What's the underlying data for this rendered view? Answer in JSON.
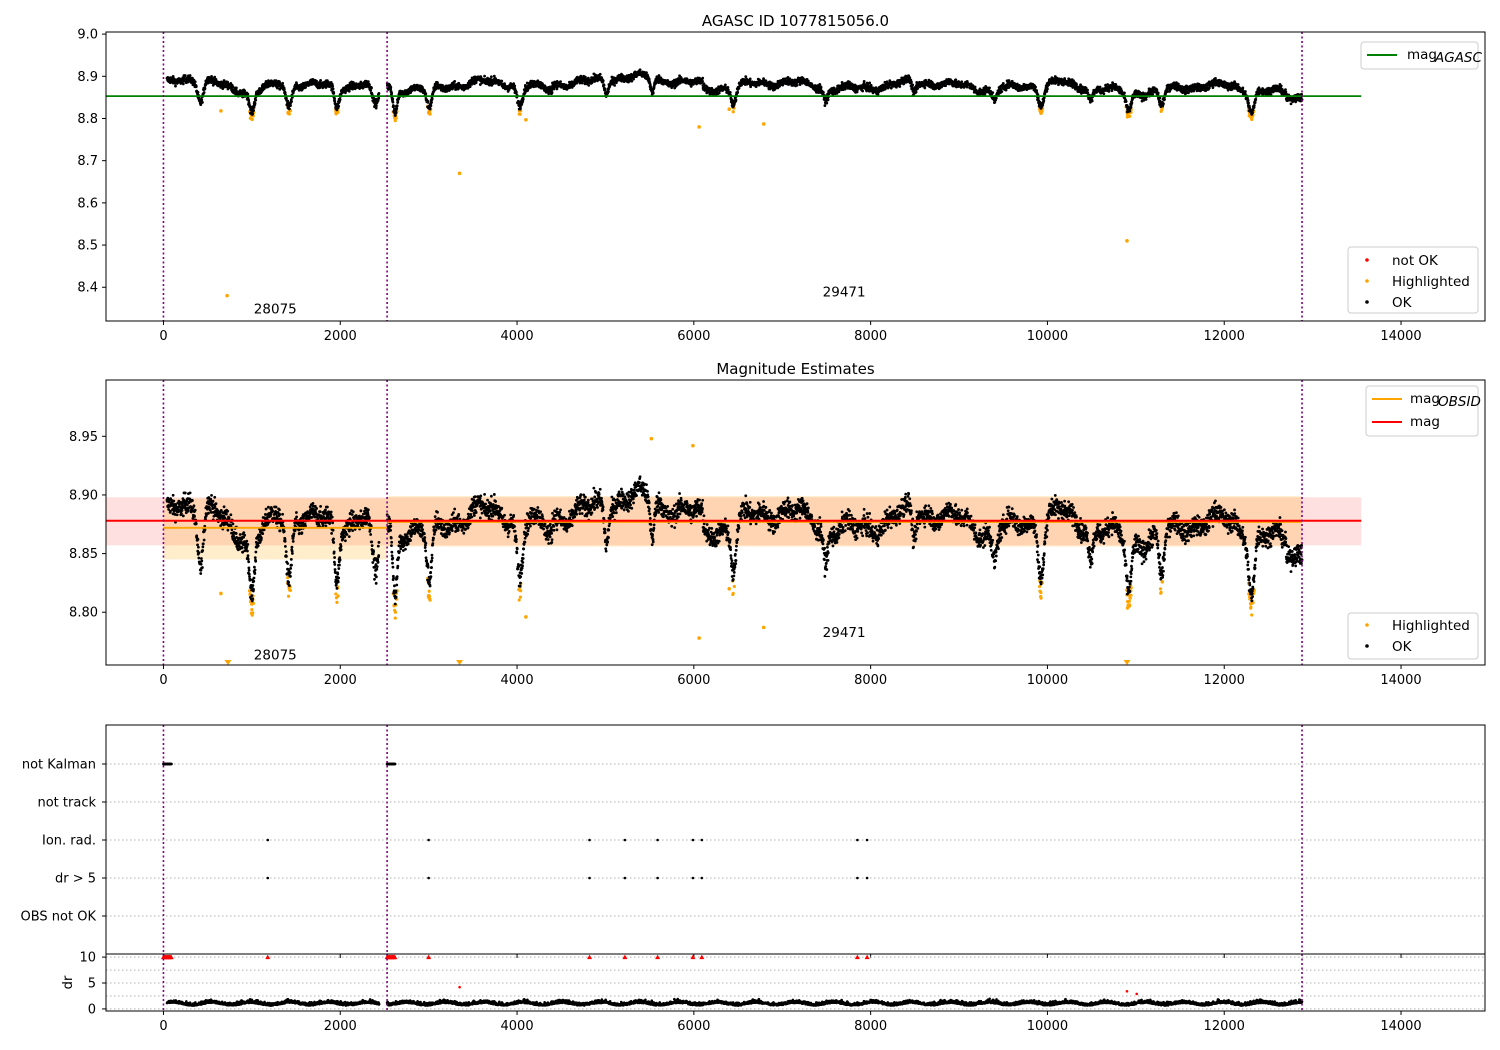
{
  "chart_data": [
    {
      "panel": "agasc",
      "type": "scatter",
      "title": "AGASC ID 1077815056.0",
      "xlim": [
        -650,
        14950
      ],
      "ylim": [
        8.32,
        9.005
      ],
      "xticks": [
        0,
        2000,
        4000,
        6000,
        8000,
        10000,
        12000,
        14000
      ],
      "yticks": [
        8.4,
        8.5,
        8.6,
        8.7,
        8.8,
        8.9,
        9.0
      ],
      "ytick_labels": [
        "8.4",
        "8.5",
        "8.6",
        "8.7",
        "8.8",
        "8.9",
        "9.0"
      ],
      "vlines": [
        0,
        2530,
        12880
      ],
      "hline": {
        "y": 8.853,
        "x": [
          -650,
          13550
        ],
        "color": "#008000"
      },
      "annotations": [
        {
          "text": "28075",
          "x": 1265,
          "y": 8.35
        },
        {
          "text": "29471",
          "x": 7700,
          "y": 8.39
        }
      ],
      "legend_top": {
        "location": "top-right",
        "entries": [
          {
            "label": "mag",
            "sub": "AGASC",
            "color": "#008000"
          }
        ]
      },
      "legend_bottom": {
        "location": "bottom-right",
        "entries": [
          {
            "label": "not OK",
            "color": "#ff0000"
          },
          {
            "label": "Highlighted",
            "color": "#ffa500"
          },
          {
            "label": "OK",
            "color": "#000000"
          }
        ]
      },
      "outliers": [
        [
          720,
          8.38
        ],
        [
          3350,
          8.67
        ],
        [
          10900,
          8.51
        ],
        [
          6060,
          8.78
        ],
        [
          6790,
          8.787
        ],
        [
          4100,
          8.797
        ],
        [
          650,
          8.818
        ],
        [
          6400,
          8.822
        ]
      ]
    },
    {
      "panel": "estimates",
      "type": "scatter",
      "title": "Magnitude Estimates",
      "xlim": [
        -650,
        14950
      ],
      "ylim": [
        8.755,
        8.998
      ],
      "xticks": [
        0,
        2000,
        4000,
        6000,
        8000,
        10000,
        12000,
        14000
      ],
      "yticks": [
        8.8,
        8.85,
        8.9,
        8.95
      ],
      "ytick_labels": [
        "8.80",
        "8.85",
        "8.90",
        "8.95"
      ],
      "vlines": [
        0,
        2530,
        12880
      ],
      "hlines": [
        {
          "name": "mag_OBSID",
          "segments": [
            [
              0,
              2530,
              8.872
            ],
            [
              2530,
              12880,
              8.877
            ]
          ],
          "color": "#ffa500"
        },
        {
          "name": "mag",
          "segments": [
            [
              -650,
              13550,
              8.878
            ]
          ],
          "color": "#ff0000"
        }
      ],
      "bands": [
        {
          "x": [
            -650,
            13550
          ],
          "y": [
            8.857,
            8.898
          ],
          "color": "#ff0000",
          "opacity": 0.12
        },
        {
          "x": [
            0,
            2530
          ],
          "y": [
            8.845,
            8.897
          ],
          "color": "#ffa500",
          "opacity": 0.2
        },
        {
          "x": [
            2530,
            12880
          ],
          "y": [
            8.856,
            8.899
          ],
          "color": "#ffa500",
          "opacity": 0.2
        }
      ],
      "annotations": [
        {
          "text": "28075",
          "x": 1265,
          "y": 8.764
        },
        {
          "text": "29471",
          "x": 7700,
          "y": 8.783
        }
      ],
      "legend_top": {
        "location": "top-right",
        "entries": [
          {
            "label": "mag",
            "sub": "OBSID",
            "color": "#ffa500"
          },
          {
            "label": "mag",
            "color": "#ff0000"
          }
        ]
      },
      "legend_bottom": {
        "location": "bottom-right",
        "entries": [
          {
            "label": "Highlighted",
            "color": "#ffa500"
          },
          {
            "label": "OK",
            "color": "#000000"
          }
        ]
      },
      "clipped_markers": [
        730,
        3350,
        10900
      ],
      "outliers": [
        [
          650,
          8.816
        ],
        [
          4100,
          8.796
        ],
        [
          6060,
          8.778
        ],
        [
          6790,
          8.787
        ],
        [
          6400,
          8.82
        ],
        [
          5520,
          8.948
        ],
        [
          5990,
          8.942
        ]
      ]
    },
    {
      "panel": "flags",
      "type": "scatter",
      "xlim": [
        -650,
        14950
      ],
      "xticks": [
        0,
        2000,
        4000,
        6000,
        8000,
        10000,
        12000,
        14000
      ],
      "vlines": [
        0,
        2530,
        12880
      ],
      "categories": [
        "not Kalman",
        "not track",
        "Ion. rad.",
        "dr > 5",
        "OBS not OK"
      ],
      "not_kalman_ranges": [
        [
          0,
          90
        ],
        [
          2530,
          2620
        ]
      ],
      "ion_rad_x": [
        1180,
        3000,
        4820,
        5220,
        5590,
        5990,
        6090,
        7850,
        7960
      ],
      "dr_gt_5_x": [
        1180,
        3000,
        4820,
        5220,
        5590,
        5990,
        6090,
        7850,
        7960
      ]
    },
    {
      "panel": "dr",
      "type": "scatter",
      "ylabel": "dr",
      "xlim": [
        -650,
        14950
      ],
      "ylim": [
        -0.4,
        10.6
      ],
      "xticks": [
        0,
        2000,
        4000,
        6000,
        8000,
        10000,
        12000,
        14000
      ],
      "xtick_labels": [
        "0",
        "2000",
        "4000",
        "6000",
        "8000",
        "10000",
        "12000",
        "14000"
      ],
      "yticks": [
        0,
        5,
        10
      ],
      "ytick_labels": [
        "0",
        "5",
        "10"
      ],
      "vlines": [
        0,
        2530,
        12880
      ],
      "red_capped_x": [
        1180,
        3000,
        4820,
        5220,
        5590,
        5990,
        6090,
        7850,
        7960
      ],
      "red_points": [
        [
          3350,
          4.2
        ],
        [
          10900,
          3.4
        ],
        [
          11010,
          2.9
        ]
      ]
    }
  ]
}
